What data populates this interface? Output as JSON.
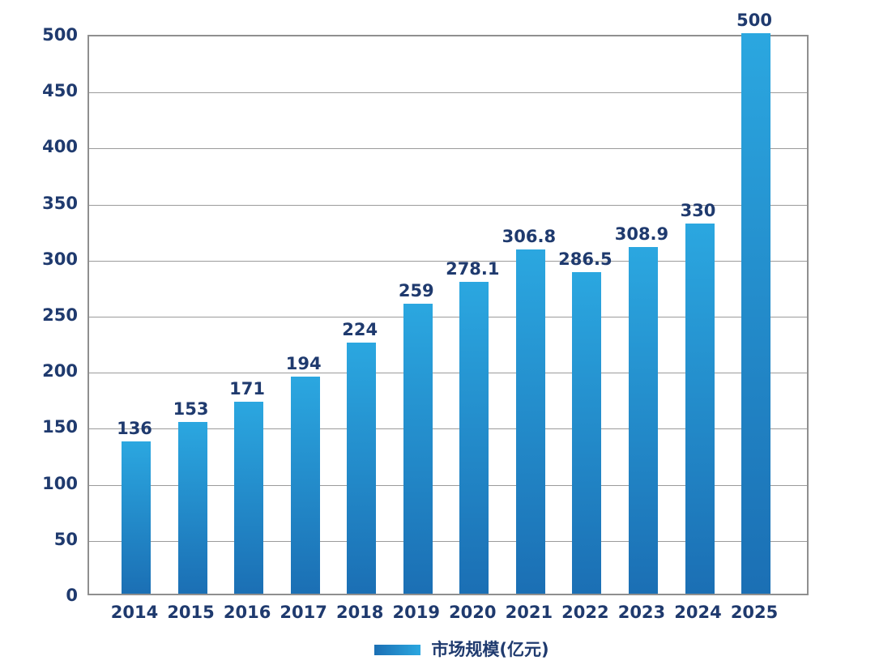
{
  "chart_data": {
    "type": "bar",
    "title": "",
    "xlabel": "",
    "ylabel": "",
    "categories": [
      "2014",
      "2015",
      "2016",
      "2017",
      "2018",
      "2019",
      "2020",
      "2021",
      "2022",
      "2023",
      "2024",
      "2025"
    ],
    "values": [
      136,
      153,
      171,
      194,
      224,
      259,
      278.1,
      306.8,
      286.5,
      308.9,
      330,
      500
    ],
    "value_labels": [
      "136",
      "153",
      "171",
      "194",
      "224",
      "259",
      "278.1",
      "306.8",
      "286.5",
      "308.9",
      "330",
      "500"
    ],
    "ylim": [
      0,
      500
    ],
    "ytick_interval": 50,
    "yticks": [
      "0",
      "50",
      "100",
      "150",
      "200",
      "250",
      "300",
      "350",
      "400",
      "450",
      "500"
    ],
    "grid": "horizontal",
    "legend_position": "bottom-center",
    "series": [
      {
        "name": "市场规模(亿元)",
        "values": [
          136,
          153,
          171,
          194,
          224,
          259,
          278.1,
          306.8,
          286.5,
          308.9,
          330,
          500
        ]
      }
    ]
  },
  "legend": {
    "label": "市场规模(亿元)"
  },
  "colors": {
    "bar_top": "#2BA7E0",
    "bar_bottom": "#1B6FB4",
    "text": "#1F3A6E",
    "gridline": "#9B9B9B",
    "plot_border": "#8F8F8F",
    "background": "#FFFFFF"
  }
}
